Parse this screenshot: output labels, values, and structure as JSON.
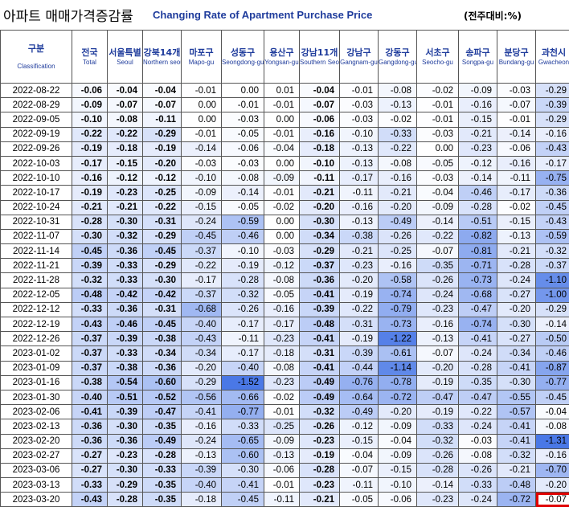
{
  "title": {
    "korean": "아파트 매매가격증감률",
    "english": "Changing Rate of Apartment Purchase Price",
    "unit": "(전주대비:%)"
  },
  "columns": [
    {
      "kr": "구분",
      "en": "Classification"
    },
    {
      "kr": "전국",
      "en": "Total"
    },
    {
      "kr": "서울특별",
      "en": "Seoul"
    },
    {
      "kr": "강북14개",
      "en": "Northern seoul"
    },
    {
      "kr": "마포구",
      "en": "Mapo-gu"
    },
    {
      "kr": "성동구",
      "en": "Seongdong-gu"
    },
    {
      "kr": "용산구",
      "en": "Yongsan-gu"
    },
    {
      "kr": "강남11개",
      "en": "Southern Seoul"
    },
    {
      "kr": "강남구",
      "en": "Gangnam-gu"
    },
    {
      "kr": "강동구",
      "en": "Gangdong-gu"
    },
    {
      "kr": "서초구",
      "en": "Seocho-gu"
    },
    {
      "kr": "송파구",
      "en": "Songpa-gu"
    },
    {
      "kr": "분당구",
      "en": "Bundang-gu"
    },
    {
      "kr": "과천시",
      "en": "Gwacheon"
    }
  ],
  "rows": [
    {
      "date": "2022-08-22",
      "values": [
        "-0.06",
        "-0.04",
        "-0.04",
        "-0.01",
        "0.00",
        "0.01",
        "-0.04",
        "-0.01",
        "-0.08",
        "-0.02",
        "-0.09",
        "-0.03",
        "-0.29"
      ]
    },
    {
      "date": "2022-08-29",
      "values": [
        "-0.09",
        "-0.07",
        "-0.07",
        "0.00",
        "-0.01",
        "-0.01",
        "-0.07",
        "-0.03",
        "-0.13",
        "-0.01",
        "-0.16",
        "-0.07",
        "-0.39"
      ]
    },
    {
      "date": "2022-09-05",
      "values": [
        "-0.10",
        "-0.08",
        "-0.11",
        "0.00",
        "-0.03",
        "0.00",
        "-0.06",
        "-0.03",
        "-0.02",
        "-0.01",
        "-0.15",
        "-0.01",
        "-0.29"
      ]
    },
    {
      "date": "2022-09-19",
      "values": [
        "-0.22",
        "-0.22",
        "-0.29",
        "-0.01",
        "-0.05",
        "-0.01",
        "-0.16",
        "-0.10",
        "-0.33",
        "-0.03",
        "-0.21",
        "-0.14",
        "-0.16"
      ]
    },
    {
      "date": "2022-09-26",
      "values": [
        "-0.19",
        "-0.18",
        "-0.19",
        "-0.14",
        "-0.06",
        "-0.04",
        "-0.18",
        "-0.13",
        "-0.22",
        "0.00",
        "-0.23",
        "-0.06",
        "-0.43"
      ]
    },
    {
      "date": "2022-10-03",
      "values": [
        "-0.17",
        "-0.15",
        "-0.20",
        "-0.03",
        "-0.03",
        "0.00",
        "-0.10",
        "-0.13",
        "-0.08",
        "-0.05",
        "-0.12",
        "-0.16",
        "-0.17"
      ]
    },
    {
      "date": "2022-10-10",
      "values": [
        "-0.16",
        "-0.12",
        "-0.12",
        "-0.10",
        "-0.08",
        "-0.09",
        "-0.11",
        "-0.17",
        "-0.16",
        "-0.03",
        "-0.14",
        "-0.11",
        "-0.75"
      ]
    },
    {
      "date": "2022-10-17",
      "values": [
        "-0.19",
        "-0.23",
        "-0.25",
        "-0.09",
        "-0.14",
        "-0.01",
        "-0.21",
        "-0.11",
        "-0.21",
        "-0.04",
        "-0.46",
        "-0.17",
        "-0.36"
      ]
    },
    {
      "date": "2022-10-24",
      "values": [
        "-0.21",
        "-0.21",
        "-0.22",
        "-0.15",
        "-0.05",
        "-0.02",
        "-0.20",
        "-0.16",
        "-0.20",
        "-0.09",
        "-0.28",
        "-0.02",
        "-0.45"
      ]
    },
    {
      "date": "2022-10-31",
      "values": [
        "-0.28",
        "-0.30",
        "-0.31",
        "-0.24",
        "-0.59",
        "0.00",
        "-0.30",
        "-0.13",
        "-0.49",
        "-0.14",
        "-0.51",
        "-0.15",
        "-0.43"
      ]
    },
    {
      "date": "2022-11-07",
      "values": [
        "-0.30",
        "-0.32",
        "-0.29",
        "-0.45",
        "-0.46",
        "0.00",
        "-0.34",
        "-0.38",
        "-0.26",
        "-0.22",
        "-0.82",
        "-0.13",
        "-0.59"
      ]
    },
    {
      "date": "2022-11-14",
      "values": [
        "-0.45",
        "-0.36",
        "-0.45",
        "-0.37",
        "-0.10",
        "-0.03",
        "-0.29",
        "-0.21",
        "-0.25",
        "-0.07",
        "-0.81",
        "-0.21",
        "-0.32"
      ]
    },
    {
      "date": "2022-11-21",
      "values": [
        "-0.39",
        "-0.33",
        "-0.29",
        "-0.22",
        "-0.19",
        "-0.12",
        "-0.37",
        "-0.23",
        "-0.16",
        "-0.35",
        "-0.71",
        "-0.28",
        "-0.37"
      ]
    },
    {
      "date": "2022-11-28",
      "values": [
        "-0.32",
        "-0.33",
        "-0.30",
        "-0.17",
        "-0.28",
        "-0.08",
        "-0.36",
        "-0.20",
        "-0.58",
        "-0.26",
        "-0.73",
        "-0.24",
        "-1.10"
      ]
    },
    {
      "date": "2022-12-05",
      "values": [
        "-0.48",
        "-0.42",
        "-0.42",
        "-0.37",
        "-0.32",
        "-0.05",
        "-0.41",
        "-0.19",
        "-0.74",
        "-0.24",
        "-0.68",
        "-0.27",
        "-1.00"
      ]
    },
    {
      "date": "2022-12-12",
      "values": [
        "-0.33",
        "-0.36",
        "-0.31",
        "-0.68",
        "-0.26",
        "-0.16",
        "-0.39",
        "-0.22",
        "-0.79",
        "-0.23",
        "-0.47",
        "-0.20",
        "-0.29"
      ]
    },
    {
      "date": "2022-12-19",
      "values": [
        "-0.43",
        "-0.46",
        "-0.45",
        "-0.40",
        "-0.17",
        "-0.17",
        "-0.48",
        "-0.31",
        "-0.73",
        "-0.16",
        "-0.74",
        "-0.30",
        "-0.14"
      ]
    },
    {
      "date": "2022-12-26",
      "values": [
        "-0.37",
        "-0.39",
        "-0.38",
        "-0.43",
        "-0.11",
        "-0.23",
        "-0.41",
        "-0.19",
        "-1.22",
        "-0.13",
        "-0.41",
        "-0.27",
        "-0.50"
      ]
    },
    {
      "date": "2023-01-02",
      "values": [
        "-0.37",
        "-0.33",
        "-0.34",
        "-0.34",
        "-0.17",
        "-0.18",
        "-0.31",
        "-0.39",
        "-0.61",
        "-0.07",
        "-0.24",
        "-0.34",
        "-0.46"
      ]
    },
    {
      "date": "2023-01-09",
      "values": [
        "-0.37",
        "-0.38",
        "-0.36",
        "-0.20",
        "-0.40",
        "-0.08",
        "-0.41",
        "-0.44",
        "-1.14",
        "-0.20",
        "-0.28",
        "-0.41",
        "-0.87"
      ]
    },
    {
      "date": "2023-01-16",
      "values": [
        "-0.38",
        "-0.54",
        "-0.60",
        "-0.29",
        "-1.52",
        "-0.23",
        "-0.49",
        "-0.76",
        "-0.78",
        "-0.19",
        "-0.35",
        "-0.30",
        "-0.77"
      ]
    },
    {
      "date": "2023-01-30",
      "values": [
        "-0.40",
        "-0.51",
        "-0.52",
        "-0.56",
        "-0.66",
        "-0.02",
        "-0.49",
        "-0.64",
        "-0.72",
        "-0.47",
        "-0.47",
        "-0.55",
        "-0.45"
      ]
    },
    {
      "date": "2023-02-06",
      "values": [
        "-0.41",
        "-0.39",
        "-0.47",
        "-0.41",
        "-0.77",
        "-0.01",
        "-0.32",
        "-0.49",
        "-0.20",
        "-0.19",
        "-0.22",
        "-0.57",
        "-0.04"
      ]
    },
    {
      "date": "2023-02-13",
      "values": [
        "-0.36",
        "-0.30",
        "-0.35",
        "-0.16",
        "-0.33",
        "-0.25",
        "-0.26",
        "-0.12",
        "-0.09",
        "-0.33",
        "-0.24",
        "-0.41",
        "-0.08"
      ]
    },
    {
      "date": "2023-02-20",
      "values": [
        "-0.36",
        "-0.36",
        "-0.49",
        "-0.24",
        "-0.65",
        "-0.09",
        "-0.23",
        "-0.15",
        "-0.04",
        "-0.32",
        "-0.03",
        "-0.41",
        "-1.31"
      ]
    },
    {
      "date": "2023-02-27",
      "values": [
        "-0.27",
        "-0.23",
        "-0.28",
        "-0.13",
        "-0.60",
        "-0.13",
        "-0.19",
        "-0.04",
        "-0.09",
        "-0.26",
        "-0.08",
        "-0.32",
        "-0.16"
      ]
    },
    {
      "date": "2023-03-06",
      "values": [
        "-0.27",
        "-0.30",
        "-0.33",
        "-0.39",
        "-0.30",
        "-0.06",
        "-0.28",
        "-0.07",
        "-0.15",
        "-0.28",
        "-0.26",
        "-0.21",
        "-0.70"
      ]
    },
    {
      "date": "2023-03-13",
      "values": [
        "-0.33",
        "-0.29",
        "-0.35",
        "-0.40",
        "-0.41",
        "-0.01",
        "-0.23",
        "-0.11",
        "-0.10",
        "-0.14",
        "-0.33",
        "-0.48",
        "-0.20"
      ]
    },
    {
      "date": "2023-03-20",
      "values": [
        "-0.43",
        "-0.28",
        "-0.35",
        "-0.18",
        "-0.45",
        "-0.11",
        "-0.21",
        "-0.05",
        "-0.06",
        "-0.23",
        "-0.24",
        "-0.72",
        "-0.07"
      ]
    }
  ],
  "bold_columns": [
    0,
    1,
    2,
    6
  ],
  "highlighted_cell": {
    "row": 28,
    "column": 12
  },
  "colors": {
    "header_text": "#1f3c9c",
    "heat_light": "#ffffff",
    "heat_dark": "#4a78e6",
    "highlight_border": "#e00000"
  }
}
